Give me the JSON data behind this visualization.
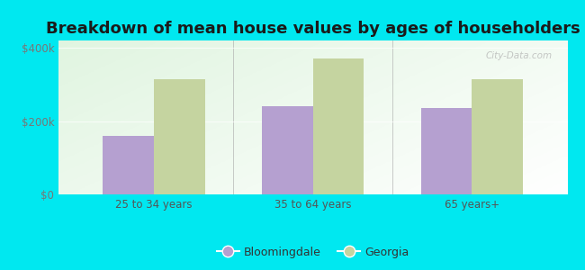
{
  "title": "Breakdown of mean house values by ages of householders",
  "categories": [
    "25 to 34 years",
    "35 to 64 years",
    "65 years+"
  ],
  "bloomingdale": [
    160000,
    240000,
    235000
  ],
  "georgia": [
    315000,
    370000,
    315000
  ],
  "ylim": [
    0,
    420000
  ],
  "ytick_vals": [
    0,
    200000,
    400000
  ],
  "ytick_labels": [
    "$0",
    "$200k",
    "$400k"
  ],
  "bloomingdale_color": "#b5a0d0",
  "georgia_color": "#c5d4a0",
  "background_outer": "#00e8f0",
  "background_inner_topleft": "#d8eed8",
  "background_inner_white": "#f8fff8",
  "title_fontsize": 13,
  "legend_bloomingdale": "Bloomingdale",
  "legend_georgia": "Georgia",
  "bar_width": 0.32,
  "watermark": "City-Data.com",
  "tick_color": "#777777",
  "label_color": "#555555"
}
